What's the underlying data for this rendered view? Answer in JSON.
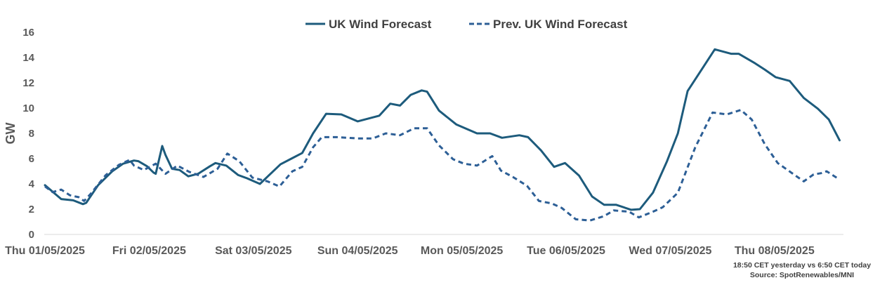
{
  "chart_data": {
    "type": "line",
    "title": "",
    "xlabel": "",
    "ylabel": "GW",
    "ylim": [
      0,
      16
    ],
    "yticks": [
      "0",
      "2",
      "4",
      "6",
      "8",
      "10",
      "12",
      "14",
      "16"
    ],
    "xlim": [
      "2025-05-01T00:00",
      "2025-05-08T15:00"
    ],
    "xtick_labels": [
      "Thu 01/05/2025",
      "Fri 02/05/2025",
      "Sat 03/05/2025",
      "Sun 04/05/2025",
      "Mon 05/05/2025",
      "Tue 06/05/2025",
      "Wed 07/05/2025",
      "Thu 08/05/2025"
    ],
    "grid": false,
    "legend_position": "top",
    "series": [
      {
        "name": "UK Wind Forecast",
        "style": "solid",
        "color": "#1d5b7c",
        "points": [
          [
            "2025-05-01T00:00",
            3.9
          ],
          [
            "2025-05-01T03:45",
            2.8
          ],
          [
            "2025-05-01T06:30",
            2.7
          ],
          [
            "2025-05-01T08:45",
            2.4
          ],
          [
            "2025-05-01T09:30",
            2.5
          ],
          [
            "2025-05-01T12:15",
            3.9
          ],
          [
            "2025-05-01T15:30",
            5.0
          ],
          [
            "2025-05-01T18:00",
            5.6
          ],
          [
            "2025-05-01T20:30",
            5.85
          ],
          [
            "2025-05-01T21:30",
            5.8
          ],
          [
            "2025-05-01T23:30",
            5.4
          ],
          [
            "2025-05-02T01:00",
            4.9
          ],
          [
            "2025-05-02T01:30",
            4.8
          ],
          [
            "2025-05-02T03:00",
            7.0
          ],
          [
            "2025-05-02T03:45",
            6.3
          ],
          [
            "2025-05-02T05:15",
            5.2
          ],
          [
            "2025-05-02T07:00",
            5.1
          ],
          [
            "2025-05-02T09:00",
            4.6
          ],
          [
            "2025-05-02T11:15",
            4.8
          ],
          [
            "2025-05-02T14:00",
            5.4
          ],
          [
            "2025-05-02T15:15",
            5.65
          ],
          [
            "2025-05-02T17:45",
            5.45
          ],
          [
            "2025-05-02T20:30",
            4.7
          ],
          [
            "2025-05-02T22:30",
            4.45
          ],
          [
            "2025-05-03T01:30",
            4.0
          ],
          [
            "2025-05-03T04:15",
            4.9
          ],
          [
            "2025-05-03T06:15",
            5.55
          ],
          [
            "2025-05-03T08:45",
            6.0
          ],
          [
            "2025-05-03T11:15",
            6.45
          ],
          [
            "2025-05-03T13:45",
            8.0
          ],
          [
            "2025-05-03T16:45",
            9.55
          ],
          [
            "2025-05-03T20:15",
            9.5
          ],
          [
            "2025-05-04T00:00",
            8.95
          ],
          [
            "2025-05-04T05:00",
            9.4
          ],
          [
            "2025-05-04T07:30",
            10.35
          ],
          [
            "2025-05-04T09:45",
            10.2
          ],
          [
            "2025-05-04T12:15",
            11.05
          ],
          [
            "2025-05-04T14:45",
            11.4
          ],
          [
            "2025-05-04T16:00",
            11.3
          ],
          [
            "2025-05-04T18:45",
            9.8
          ],
          [
            "2025-05-04T22:45",
            8.7
          ],
          [
            "2025-05-05T03:30",
            8.0
          ],
          [
            "2025-05-05T06:30",
            8.0
          ],
          [
            "2025-05-05T09:15",
            7.65
          ],
          [
            "2025-05-05T13:15",
            7.85
          ],
          [
            "2025-05-05T15:15",
            7.7
          ],
          [
            "2025-05-05T18:15",
            6.65
          ],
          [
            "2025-05-05T21:15",
            5.35
          ],
          [
            "2025-05-05T23:45",
            5.65
          ],
          [
            "2025-05-06T03:00",
            4.65
          ],
          [
            "2025-05-06T06:00",
            3.0
          ],
          [
            "2025-05-06T08:45",
            2.35
          ],
          [
            "2025-05-06T11:30",
            2.35
          ],
          [
            "2025-05-06T15:00",
            1.95
          ],
          [
            "2025-05-06T17:00",
            2.0
          ],
          [
            "2025-05-06T20:00",
            3.3
          ],
          [
            "2025-05-06T23:15",
            5.8
          ],
          [
            "2025-05-07T01:45",
            8.0
          ],
          [
            "2025-05-07T04:00",
            11.35
          ],
          [
            "2025-05-07T07:30",
            13.2
          ],
          [
            "2025-05-07T10:15",
            14.65
          ],
          [
            "2025-05-07T14:00",
            14.3
          ],
          [
            "2025-05-07T15:45",
            14.3
          ],
          [
            "2025-05-07T19:30",
            13.55
          ],
          [
            "2025-05-07T21:45",
            13.05
          ],
          [
            "2025-05-08T00:15",
            12.45
          ],
          [
            "2025-05-08T03:30",
            12.15
          ],
          [
            "2025-05-08T06:45",
            10.8
          ],
          [
            "2025-05-08T10:00",
            9.95
          ],
          [
            "2025-05-08T12:30",
            9.1
          ],
          [
            "2025-05-08T15:00",
            7.45
          ]
        ]
      },
      {
        "name": "Prev. UK Wind Forecast",
        "style": "dashed",
        "color": "#2d5f96",
        "points": [
          [
            "2025-05-01T00:00",
            3.8
          ],
          [
            "2025-05-01T01:45",
            3.35
          ],
          [
            "2025-05-01T03:45",
            3.55
          ],
          [
            "2025-05-01T05:45",
            3.1
          ],
          [
            "2025-05-01T07:45",
            2.95
          ],
          [
            "2025-05-01T09:00",
            2.65
          ],
          [
            "2025-05-01T10:30",
            3.2
          ],
          [
            "2025-05-01T14:00",
            4.7
          ],
          [
            "2025-05-01T17:00",
            5.5
          ],
          [
            "2025-05-01T19:30",
            5.9
          ],
          [
            "2025-05-01T20:30",
            5.45
          ],
          [
            "2025-05-01T22:45",
            5.1
          ],
          [
            "2025-05-02T01:30",
            5.6
          ],
          [
            "2025-05-02T03:45",
            4.8
          ],
          [
            "2025-05-02T06:30",
            5.45
          ],
          [
            "2025-05-02T09:15",
            4.95
          ],
          [
            "2025-05-02T12:30",
            4.55
          ],
          [
            "2025-05-02T15:45",
            5.2
          ],
          [
            "2025-05-02T18:00",
            6.4
          ],
          [
            "2025-05-02T20:45",
            5.8
          ],
          [
            "2025-05-02T23:45",
            4.5
          ],
          [
            "2025-05-03T03:15",
            4.2
          ],
          [
            "2025-05-03T06:00",
            3.8
          ],
          [
            "2025-05-03T09:00",
            5.0
          ],
          [
            "2025-05-03T11:15",
            5.35
          ],
          [
            "2025-05-03T13:45",
            6.9
          ],
          [
            "2025-05-03T15:45",
            7.7
          ],
          [
            "2025-05-03T19:15",
            7.7
          ],
          [
            "2025-05-04T00:00",
            7.6
          ],
          [
            "2025-05-04T03:30",
            7.6
          ],
          [
            "2025-05-04T06:30",
            8.0
          ],
          [
            "2025-05-04T09:45",
            7.85
          ],
          [
            "2025-05-04T13:00",
            8.4
          ],
          [
            "2025-05-04T16:00",
            8.4
          ],
          [
            "2025-05-04T18:45",
            7.05
          ],
          [
            "2025-05-04T22:00",
            5.95
          ],
          [
            "2025-05-05T00:30",
            5.6
          ],
          [
            "2025-05-05T03:30",
            5.45
          ],
          [
            "2025-05-05T07:00",
            6.2
          ],
          [
            "2025-05-05T09:00",
            5.05
          ],
          [
            "2025-05-05T11:45",
            4.55
          ],
          [
            "2025-05-05T15:00",
            3.85
          ],
          [
            "2025-05-05T17:45",
            2.65
          ],
          [
            "2025-05-05T20:45",
            2.45
          ],
          [
            "2025-05-05T23:00",
            2.1
          ],
          [
            "2025-05-06T02:15",
            1.2
          ],
          [
            "2025-05-06T05:30",
            1.1
          ],
          [
            "2025-05-06T08:45",
            1.45
          ],
          [
            "2025-05-06T11:00",
            1.9
          ],
          [
            "2025-05-06T14:30",
            1.8
          ],
          [
            "2025-05-06T16:45",
            1.35
          ],
          [
            "2025-05-06T20:00",
            1.8
          ],
          [
            "2025-05-06T22:15",
            2.15
          ],
          [
            "2025-05-07T01:45",
            3.3
          ],
          [
            "2025-05-07T05:45",
            6.9
          ],
          [
            "2025-05-07T09:45",
            9.65
          ],
          [
            "2025-05-07T13:00",
            9.5
          ],
          [
            "2025-05-07T16:15",
            9.85
          ],
          [
            "2025-05-07T18:45",
            9.1
          ],
          [
            "2025-05-07T21:45",
            7.15
          ],
          [
            "2025-05-08T00:45",
            5.65
          ],
          [
            "2025-05-08T04:15",
            4.8
          ],
          [
            "2025-05-08T06:45",
            4.2
          ],
          [
            "2025-05-08T09:00",
            4.75
          ],
          [
            "2025-05-08T10:45",
            4.85
          ],
          [
            "2025-05-08T12:00",
            5.0
          ],
          [
            "2025-05-08T14:30",
            4.45
          ]
        ]
      }
    ],
    "annotations": [
      "18:50 CET yesterday vs  6:50 CET today",
      "Source: SpotRenewables/MNI"
    ]
  }
}
